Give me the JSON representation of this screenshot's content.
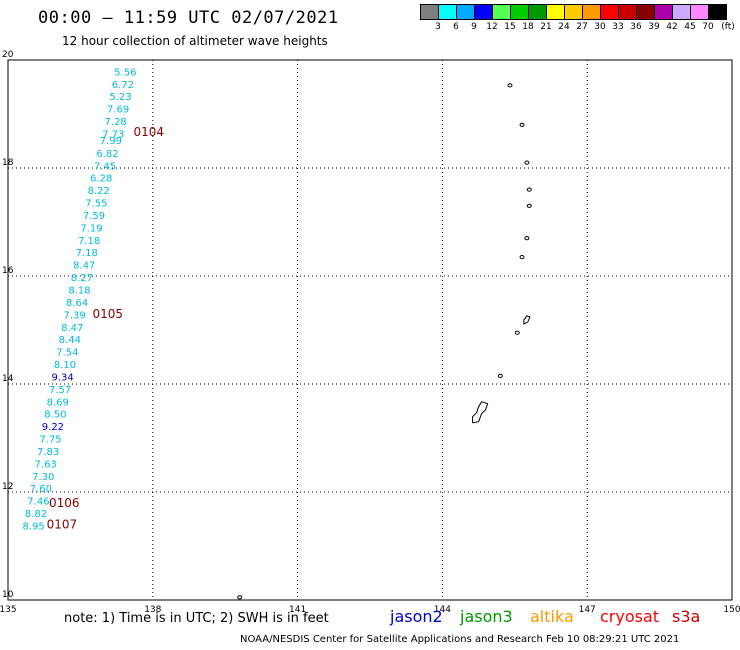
{
  "header": {
    "title": "00:00 – 11:59 UTC 02/07/2021",
    "subtitle": "12 hour collection of altimeter wave heights"
  },
  "legend": {
    "colors": [
      "#808080",
      "#00ffff",
      "#00aaff",
      "#0000ff",
      "#55ff55",
      "#00cc00",
      "#009900",
      "#ffff00",
      "#ffcc00",
      "#ff9900",
      "#ff0000",
      "#cc0000",
      "#880000",
      "#aa00aa",
      "#ccaaff",
      "#ff88ff",
      "#000000"
    ],
    "labels": [
      "3",
      "6",
      "9",
      "12",
      "15",
      "18",
      "21",
      "24",
      "27",
      "30",
      "33",
      "36",
      "39",
      "42",
      "45",
      "70"
    ],
    "unit": "(ft)"
  },
  "axes": {
    "x_ticks": [
      "135",
      "138",
      "141",
      "144",
      "147",
      "150"
    ],
    "y_ticks": [
      "20",
      "18",
      "16",
      "14",
      "12",
      "10"
    ]
  },
  "wave_heights": [
    {
      "value": "5.56",
      "lat": 19.79,
      "lon": 137.2,
      "color": "#00bbdd"
    },
    {
      "value": "6.72",
      "lat": 19.56,
      "lon": 137.15,
      "color": "#00bbdd"
    },
    {
      "value": "5.23",
      "lat": 19.33,
      "lon": 137.1,
      "color": "#00bbdd"
    },
    {
      "value": "7.69",
      "lat": 19.1,
      "lon": 137.05,
      "color": "#00bbdd"
    },
    {
      "value": "7.28",
      "lat": 18.87,
      "lon": 137.0,
      "color": "#00bbdd"
    },
    {
      "value": "7.73",
      "lat": 18.64,
      "lon": 136.95,
      "color": "#00bbdd"
    },
    {
      "value": "7.99",
      "lat": 18.52,
      "lon": 136.9,
      "color": "#00bbdd"
    },
    {
      "value": "6.82",
      "lat": 18.28,
      "lon": 136.83,
      "color": "#00bbdd"
    },
    {
      "value": "7.45",
      "lat": 18.05,
      "lon": 136.78,
      "color": "#00bbdd"
    },
    {
      "value": "6.28",
      "lat": 17.82,
      "lon": 136.7,
      "color": "#00bbdd"
    },
    {
      "value": "8.22",
      "lat": 17.59,
      "lon": 136.65,
      "color": "#00bbdd"
    },
    {
      "value": "7.55",
      "lat": 17.36,
      "lon": 136.6,
      "color": "#00bbdd"
    },
    {
      "value": "7.59",
      "lat": 17.13,
      "lon": 136.55,
      "color": "#00bbdd"
    },
    {
      "value": "7.19",
      "lat": 16.9,
      "lon": 136.5,
      "color": "#00bbdd"
    },
    {
      "value": "7.18",
      "lat": 16.67,
      "lon": 136.45,
      "color": "#00bbdd"
    },
    {
      "value": "7.18",
      "lat": 16.44,
      "lon": 136.4,
      "color": "#00bbdd"
    },
    {
      "value": "8.47",
      "lat": 16.21,
      "lon": 136.35,
      "color": "#00bbdd"
    },
    {
      "value": "8.27",
      "lat": 15.98,
      "lon": 136.3,
      "color": "#00bbdd"
    },
    {
      "value": "8.18",
      "lat": 15.75,
      "lon": 136.25,
      "color": "#00bbdd"
    },
    {
      "value": "8.64",
      "lat": 15.52,
      "lon": 136.2,
      "color": "#00bbdd"
    },
    {
      "value": "7.39",
      "lat": 15.29,
      "lon": 136.15,
      "color": "#00bbdd"
    },
    {
      "value": "8.47",
      "lat": 15.06,
      "lon": 136.1,
      "color": "#00bbdd"
    },
    {
      "value": "8.44",
      "lat": 14.83,
      "lon": 136.05,
      "color": "#00bbdd"
    },
    {
      "value": "7.54",
      "lat": 14.6,
      "lon": 136.0,
      "color": "#00bbdd"
    },
    {
      "value": "8.10",
      "lat": 14.37,
      "lon": 135.95,
      "color": "#00bbdd"
    },
    {
      "value": "9.34",
      "lat": 14.14,
      "lon": 135.9,
      "color": "#0000cc"
    },
    {
      "value": "7.57",
      "lat": 13.91,
      "lon": 135.85,
      "color": "#00bbdd"
    },
    {
      "value": "8.69",
      "lat": 13.68,
      "lon": 135.8,
      "color": "#00bbdd"
    },
    {
      "value": "8.50",
      "lat": 13.45,
      "lon": 135.75,
      "color": "#00bbdd"
    },
    {
      "value": "9.22",
      "lat": 13.22,
      "lon": 135.7,
      "color": "#0000cc"
    },
    {
      "value": "7.75",
      "lat": 12.99,
      "lon": 135.65,
      "color": "#00bbdd"
    },
    {
      "value": "7.83",
      "lat": 12.76,
      "lon": 135.6,
      "color": "#00bbdd"
    },
    {
      "value": "7.63",
      "lat": 12.53,
      "lon": 135.55,
      "color": "#00bbdd"
    },
    {
      "value": "7.30",
      "lat": 12.3,
      "lon": 135.5,
      "color": "#00bbdd"
    },
    {
      "value": "7.60",
      "lat": 12.07,
      "lon": 135.45,
      "color": "#00bbdd"
    },
    {
      "value": "7.46",
      "lat": 11.84,
      "lon": 135.4,
      "color": "#00bbdd"
    },
    {
      "value": "8.82",
      "lat": 11.61,
      "lon": 135.35,
      "color": "#00bbdd"
    },
    {
      "value": "8.95",
      "lat": 11.38,
      "lon": 135.3,
      "color": "#00bbdd"
    }
  ],
  "time_labels": [
    {
      "text": "0104",
      "lat": 18.67,
      "lon": 137.6
    },
    {
      "text": "0105",
      "lat": 15.3,
      "lon": 136.75
    },
    {
      "text": "0106",
      "lat": 11.8,
      "lon": 135.85
    },
    {
      "text": "0107",
      "lat": 11.4,
      "lon": 135.8
    }
  ],
  "islands": [
    {
      "lat": 19.53,
      "lon": 145.4
    },
    {
      "lat": 18.8,
      "lon": 145.65
    },
    {
      "lat": 18.1,
      "lon": 145.75
    },
    {
      "lat": 17.6,
      "lon": 145.8
    },
    {
      "lat": 17.3,
      "lon": 145.8
    },
    {
      "lat": 16.7,
      "lon": 145.75
    },
    {
      "lat": 16.35,
      "lon": 145.65
    },
    {
      "lat": 15.15,
      "lon": 145.75
    },
    {
      "lat": 14.95,
      "lon": 145.55
    },
    {
      "lat": 14.15,
      "lon": 145.2
    },
    {
      "lat": 13.45,
      "lon": 144.75
    },
    {
      "lat": 10.05,
      "lon": 139.8
    }
  ],
  "notes": {
    "note": "note:  1) Time is in UTC;  2) SWH is in feet",
    "footer": "NOAA/NESDIS Center for Satellite Applications and Research     Feb 10 08:29:21 UTC 2021"
  },
  "satellites": [
    {
      "name": "jason2",
      "color": "#0000cc"
    },
    {
      "name": "jason3",
      "color": "#009900"
    },
    {
      "name": "altika",
      "color": "#ff9900"
    },
    {
      "name": "cryosat",
      "color": "#ff0000"
    },
    {
      "name": "s3a",
      "color": "#cc0000"
    }
  ]
}
